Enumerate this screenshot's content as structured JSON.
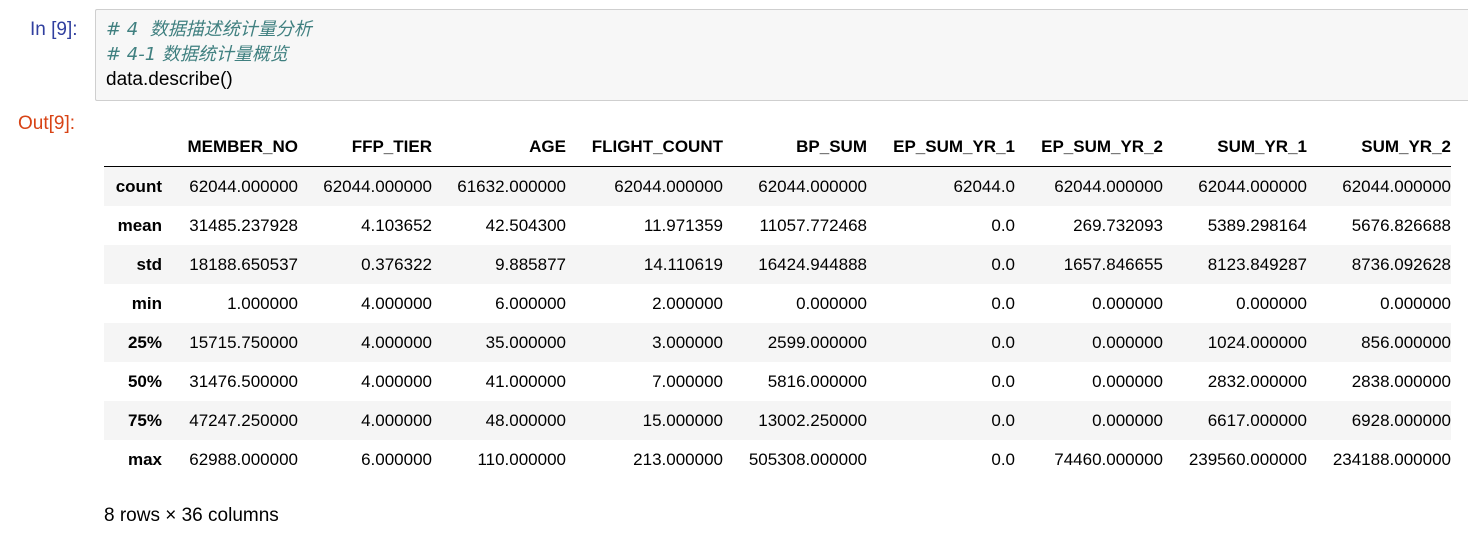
{
  "input": {
    "prompt": "In [9]:",
    "lines": [
      "# 4  数据描述统计量分析",
      "# 4-1 数据统计量概览",
      "data.describe()"
    ]
  },
  "output": {
    "prompt": "Out[9]:",
    "columns": [
      "",
      "MEMBER_NO",
      "FFP_TIER",
      "AGE",
      "FLIGHT_COUNT",
      "BP_SUM",
      "EP_SUM_YR_1",
      "EP_SUM_YR_2",
      "SUM_YR_1",
      "SUM_YR_2"
    ],
    "rows": [
      [
        "count",
        "62044.000000",
        "62044.000000",
        "61632.000000",
        "62044.000000",
        "62044.000000",
        "62044.0",
        "62044.000000",
        "62044.000000",
        "62044.000000"
      ],
      [
        "mean",
        "31485.237928",
        "4.103652",
        "42.504300",
        "11.971359",
        "11057.772468",
        "0.0",
        "269.732093",
        "5389.298164",
        "5676.826688"
      ],
      [
        "std",
        "18188.650537",
        "0.376322",
        "9.885877",
        "14.110619",
        "16424.944888",
        "0.0",
        "1657.846655",
        "8123.849287",
        "8736.092628"
      ],
      [
        "min",
        "1.000000",
        "4.000000",
        "6.000000",
        "2.000000",
        "0.000000",
        "0.0",
        "0.000000",
        "0.000000",
        "0.000000"
      ],
      [
        "25%",
        "15715.750000",
        "4.000000",
        "35.000000",
        "3.000000",
        "2599.000000",
        "0.0",
        "0.000000",
        "1024.000000",
        "856.000000"
      ],
      [
        "50%",
        "31476.500000",
        "4.000000",
        "41.000000",
        "7.000000",
        "5816.000000",
        "0.0",
        "0.000000",
        "2832.000000",
        "2838.000000"
      ],
      [
        "75%",
        "47247.250000",
        "4.000000",
        "48.000000",
        "15.000000",
        "13002.250000",
        "0.0",
        "0.000000",
        "6617.000000",
        "6928.000000"
      ],
      [
        "max",
        "62988.000000",
        "6.000000",
        "110.000000",
        "213.000000",
        "505308.000000",
        "0.0",
        "74460.000000",
        "239560.000000",
        "234188.000000"
      ]
    ],
    "summary": "8 rows × 36 columns"
  }
}
